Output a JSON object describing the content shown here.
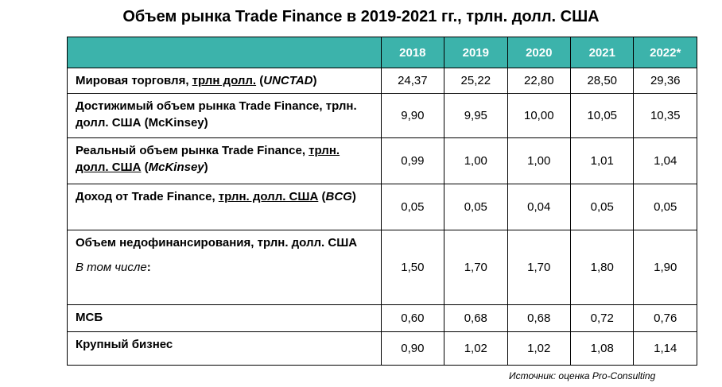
{
  "header": {
    "title": "Объем рынка Trade Finance  в 2019-2021 гг., трлн. долл. США"
  },
  "table": {
    "columns": [
      "2018",
      "2019",
      "2020",
      "2021",
      "2022*"
    ],
    "rows": [
      {
        "label": [
          "Мировая торговля, ",
          "трлн долл.",
          " (",
          "UNCTAD",
          ")"
        ],
        "values": [
          "24,37",
          "25,22",
          "22,80",
          "28,50",
          "29,36"
        ]
      },
      {
        "label": [
          "Достижимый объем рынка Trade Finance, трлн. долл. США (McKinsey)"
        ],
        "values": [
          "9,90",
          "9,95",
          "10,00",
          "10,05",
          "10,35"
        ]
      },
      {
        "label": [
          "Реальный объем рынка Trade Finance, ",
          "трлн. долл. США",
          " (",
          "McKinsey",
          ")"
        ],
        "values": [
          "0,99",
          "1,00",
          "1,00",
          "1,01",
          "1,04"
        ]
      },
      {
        "label": [
          "Доход от Trade Finance, ",
          "трлн. долл. США",
          " (",
          "BCG",
          ")"
        ],
        "values": [
          "0,05",
          "0,05",
          "0,04",
          "0,05",
          "0,05"
        ]
      },
      {
        "label": [
          "Объем недофинансирования, трлн. долл. США",
          "В том числе",
          ":"
        ],
        "values": [
          "1,50",
          "1,70",
          "1,70",
          "1,80",
          "1,90"
        ]
      },
      {
        "label": [
          "МСБ"
        ],
        "values": [
          "0,60",
          "0,68",
          "0,68",
          "0,72",
          "0,76"
        ]
      },
      {
        "label": [
          "Крупный бизнес"
        ],
        "values": [
          "0,90",
          "1,02",
          "1,02",
          "1,08",
          "1,14"
        ]
      }
    ]
  },
  "footer": {
    "source": "Источник: оценка Pro-Consulting"
  }
}
